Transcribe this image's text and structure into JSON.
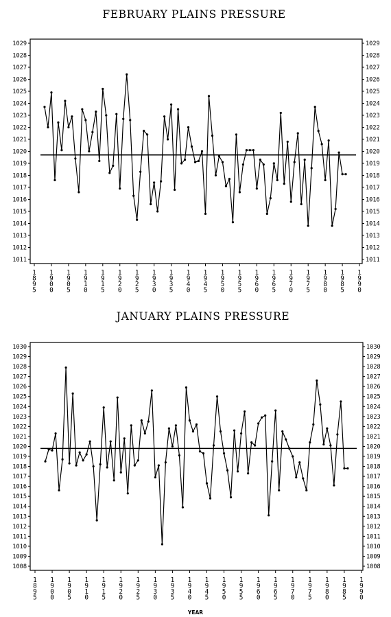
{
  "chart_data": [
    {
      "type": "line",
      "title": "FEBRUARY PLAINS PRESSURE",
      "xlabel": "",
      "ylabel": "",
      "xlim": [
        1895,
        1990
      ],
      "ylim": [
        1011,
        1029
      ],
      "y_ticks": [
        1011,
        1012,
        1013,
        1014,
        1015,
        1016,
        1017,
        1018,
        1019,
        1020,
        1021,
        1022,
        1023,
        1024,
        1025,
        1026,
        1027,
        1028,
        1029
      ],
      "x_ticks": [
        "1895",
        "1900",
        "1905",
        "1910",
        "1915",
        "1920",
        "1925",
        "1930",
        "1935",
        "1940",
        "1945",
        "1950",
        "1955",
        "1960",
        "1965",
        "1970",
        "1975",
        "1980",
        "1985",
        "1990"
      ],
      "grid": false,
      "mean_line": 1019.7,
      "x": [
        1898,
        1899,
        1900,
        1901,
        1902,
        1903,
        1904,
        1905,
        1906,
        1907,
        1908,
        1909,
        1910,
        1911,
        1912,
        1913,
        1914,
        1915,
        1916,
        1917,
        1918,
        1919,
        1920,
        1921,
        1922,
        1923,
        1924,
        1925,
        1926,
        1927,
        1928,
        1929,
        1930,
        1931,
        1932,
        1933,
        1934,
        1935,
        1936,
        1937,
        1938,
        1939,
        1940,
        1941,
        1942,
        1943,
        1944,
        1945,
        1946,
        1947,
        1948,
        1949,
        1950,
        1951,
        1952,
        1953,
        1954,
        1955,
        1956,
        1957,
        1958,
        1959,
        1960,
        1961,
        1962,
        1963,
        1964,
        1965,
        1966,
        1967,
        1968,
        1969,
        1970,
        1971,
        1972,
        1973,
        1974,
        1975,
        1976,
        1977,
        1978,
        1979,
        1980,
        1981,
        1982,
        1983,
        1984,
        1985,
        1986
      ],
      "series": [
        {
          "values": [
            1023.7,
            1022.0,
            1024.9,
            1017.6,
            1022.4,
            1020.1,
            1024.2,
            1022.0,
            1022.9,
            1019.4,
            1016.6,
            1023.5,
            1022.6,
            1020.0,
            1021.6,
            1023.3,
            1019.2,
            1025.2,
            1023.0,
            1018.2,
            1018.8,
            1023.1,
            1016.9,
            1022.7,
            1026.4,
            1022.6,
            1016.3,
            1014.3,
            1018.3,
            1021.7,
            1021.4,
            1015.6,
            1017.4,
            1015.0,
            1017.5,
            1022.9,
            1021.0,
            1023.9,
            1016.8,
            1023.5,
            1019.0,
            1019.3,
            1022.0,
            1020.4,
            1019.1,
            1019.2,
            1020.0,
            1014.8,
            1024.6,
            1021.3,
            1018.0,
            1019.6,
            1019.1,
            1017.1,
            1017.7,
            1014.1,
            1021.4,
            1016.6,
            1018.9,
            1020.1,
            1020.1,
            1020.1,
            1016.9,
            1019.3,
            1018.9,
            1014.8,
            1016.1,
            1019.0,
            1017.6,
            1023.2,
            1017.3,
            1020.8,
            1015.8,
            1019.1,
            1021.5,
            1015.6,
            1019.3,
            1013.8,
            1018.6,
            1023.7,
            1021.7,
            1020.6,
            1017.6,
            1020.9,
            1013.8,
            1015.2,
            1019.9,
            1018.1,
            1018.1
          ]
        }
      ]
    },
    {
      "type": "line",
      "title": "JANUARY PLAINS PRESSURE",
      "xlabel": "YEAR",
      "ylabel": "",
      "xlim": [
        1895,
        1990
      ],
      "ylim": [
        1008,
        1030
      ],
      "y_ticks": [
        1008,
        1009,
        1010,
        1011,
        1012,
        1013,
        1014,
        1015,
        1016,
        1017,
        1018,
        1019,
        1020,
        1021,
        1022,
        1023,
        1024,
        1025,
        1026,
        1027,
        1028,
        1029,
        1030
      ],
      "x_ticks": [
        "1895",
        "1900",
        "1905",
        "1910",
        "1915",
        "1920",
        "1925",
        "1930",
        "1935",
        "1940",
        "1945",
        "1950",
        "1955",
        "1960",
        "1965",
        "1970",
        "1975",
        "1980",
        "1985",
        "1990"
      ],
      "grid": false,
      "mean_line": 1019.8,
      "x": [
        1898,
        1899,
        1900,
        1901,
        1902,
        1903,
        1904,
        1905,
        1906,
        1907,
        1908,
        1909,
        1910,
        1911,
        1912,
        1913,
        1914,
        1915,
        1916,
        1917,
        1918,
        1919,
        1920,
        1921,
        1922,
        1923,
        1924,
        1925,
        1926,
        1927,
        1928,
        1929,
        1930,
        1931,
        1932,
        1933,
        1934,
        1935,
        1936,
        1937,
        1938,
        1939,
        1940,
        1941,
        1942,
        1943,
        1944,
        1945,
        1946,
        1947,
        1948,
        1949,
        1950,
        1951,
        1952,
        1953,
        1954,
        1955,
        1956,
        1957,
        1958,
        1959,
        1960,
        1961,
        1962,
        1963,
        1964,
        1965,
        1966,
        1967,
        1968,
        1969,
        1970,
        1971,
        1972,
        1973,
        1974,
        1975,
        1976,
        1977,
        1978,
        1979,
        1980,
        1981,
        1982,
        1983,
        1984,
        1985,
        1986
      ],
      "series": [
        {
          "values": [
            1018.5,
            1019.7,
            1019.6,
            1021.3,
            1015.6,
            1018.7,
            1027.9,
            1018.3,
            1025.3,
            1018.1,
            1019.4,
            1018.6,
            1019.2,
            1020.5,
            1018.0,
            1012.6,
            1018.2,
            1023.9,
            1017.9,
            1020.5,
            1016.6,
            1024.9,
            1017.4,
            1020.8,
            1015.3,
            1022.1,
            1018.1,
            1018.6,
            1022.6,
            1021.3,
            1022.5,
            1025.6,
            1016.9,
            1018.1,
            1010.2,
            1018.4,
            1021.8,
            1020.0,
            1022.1,
            1019.1,
            1013.9,
            1025.9,
            1022.6,
            1021.5,
            1022.2,
            1019.5,
            1019.3,
            1016.3,
            1014.8,
            1020.1,
            1025.0,
            1021.5,
            1019.3,
            1017.6,
            1014.9,
            1021.6,
            1017.5,
            1021.3,
            1023.5,
            1017.3,
            1020.4,
            1020.1,
            1022.3,
            1022.9,
            1023.1,
            1013.1,
            1018.5,
            1023.6,
            1015.6,
            1021.5,
            1020.7,
            1019.8,
            1019.0,
            1016.9,
            1018.4,
            1016.8,
            1015.6,
            1020.4,
            1022.2,
            1026.6,
            1024.2,
            1020.2,
            1021.8,
            1020.1,
            1016.1,
            1021.2,
            1024.5,
            1017.8,
            1017.8
          ]
        }
      ]
    }
  ]
}
